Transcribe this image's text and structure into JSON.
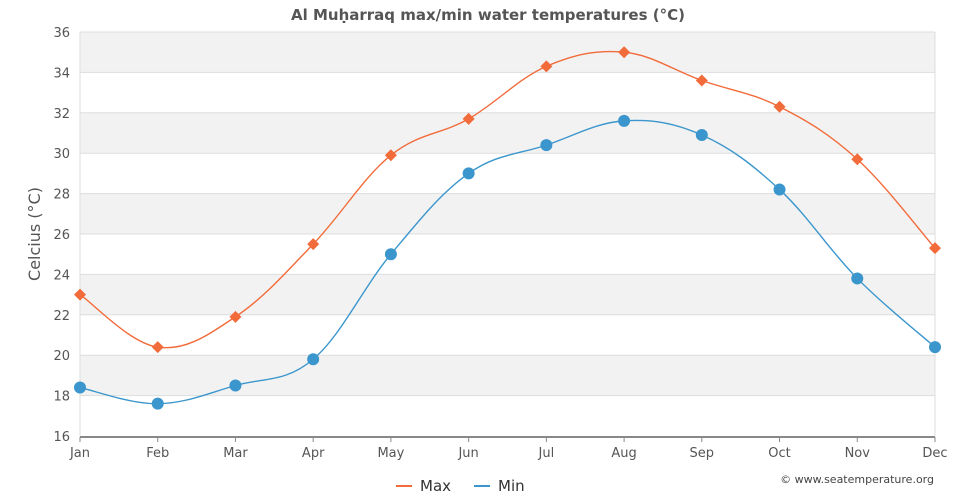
{
  "chart_data": {
    "type": "line",
    "title": "Al Muḥarraq max/min water temperatures (°C)",
    "ylabel": "Celcius (°C)",
    "xlabel": "",
    "categories": [
      "Jan",
      "Feb",
      "Mar",
      "Apr",
      "May",
      "Jun",
      "Jul",
      "Aug",
      "Sep",
      "Oct",
      "Nov",
      "Dec"
    ],
    "ylim": [
      16,
      36
    ],
    "yticks": [
      "16",
      "18",
      "20",
      "22",
      "24",
      "26",
      "28",
      "30",
      "32",
      "34",
      "36"
    ],
    "grid": "horizontal alternating bands",
    "legend": "bottom-center",
    "series": [
      {
        "name": "Max",
        "color": "#f26b3a",
        "marker": "diamond",
        "values": [
          23.0,
          20.4,
          21.9,
          25.5,
          29.9,
          31.7,
          34.3,
          35.0,
          33.6,
          32.3,
          29.7,
          25.3
        ]
      },
      {
        "name": "Min",
        "color": "#3a96cc",
        "marker": "circle",
        "values": [
          18.4,
          17.6,
          18.5,
          19.8,
          25.0,
          29.0,
          30.4,
          31.6,
          30.9,
          28.2,
          23.8,
          20.4
        ]
      }
    ],
    "credit": "© www.seatemperature.org"
  }
}
